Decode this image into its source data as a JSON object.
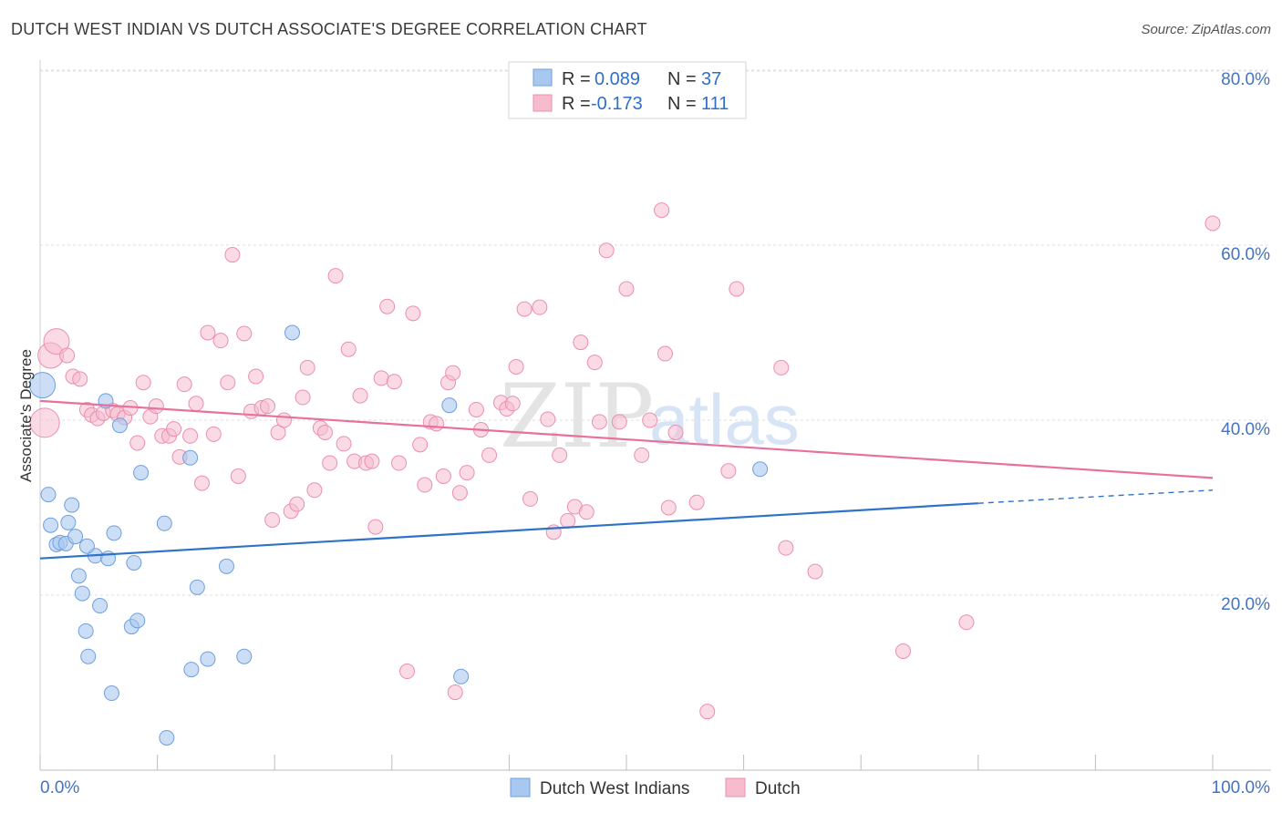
{
  "header": {
    "title": "DUTCH WEST INDIAN VS DUTCH ASSOCIATE'S DEGREE CORRELATION CHART",
    "source": "Source: ZipAtlas.com"
  },
  "watermark": {
    "zip": "ZIP",
    "atlas": "atlas"
  },
  "legend": {
    "r_label": "R =",
    "n_label": "N =",
    "series": [
      {
        "r": "0.089",
        "n": "37"
      },
      {
        "r": "-0.173",
        "n": "111"
      }
    ]
  },
  "bottom_legend": [
    "Dutch West Indians",
    "Dutch"
  ],
  "colors": {
    "blue_fill": "#a9c8f0",
    "blue_stroke": "#6f9fdc",
    "blue_line": "#2f73c9",
    "pink_fill": "#f6bccd",
    "pink_stroke": "#ec8fac",
    "pink_line": "#e8709a",
    "tick_color": "#4472c4"
  },
  "chart_data": {
    "type": "scatter",
    "title": "DUTCH WEST INDIAN VS DUTCH ASSOCIATE'S DEGREE CORRELATION CHART",
    "xlabel": "",
    "ylabel": "Associate's Degree",
    "xlim": [
      0,
      100
    ],
    "ylim": [
      0,
      82
    ],
    "x_ticks": [
      "0.0%",
      "100.0%"
    ],
    "y_ticks": [
      "20.0%",
      "40.0%",
      "60.0%",
      "80.0%"
    ],
    "y_tick_values": [
      20,
      40,
      60,
      80
    ],
    "grid": true,
    "legend_position": "top-center",
    "series": [
      {
        "name": "Dutch West Indians",
        "r": 0.089,
        "n": 37,
        "trend": {
          "x0": 0,
          "y0": 24.2,
          "x1": 80,
          "y1": 30.5,
          "dashed_to": 100,
          "dashed_y": 32.0
        },
        "points": [
          [
            0.2,
            44.0,
            14
          ],
          [
            0.7,
            31.5,
            8
          ],
          [
            0.9,
            28.0,
            8
          ],
          [
            1.4,
            25.8,
            8
          ],
          [
            1.7,
            26.0,
            8
          ],
          [
            2.2,
            25.9,
            8
          ],
          [
            2.4,
            28.3,
            8
          ],
          [
            2.7,
            30.3,
            8
          ],
          [
            3.0,
            26.7,
            8
          ],
          [
            3.3,
            22.2,
            8
          ],
          [
            3.6,
            20.2,
            8
          ],
          [
            3.9,
            15.9,
            8
          ],
          [
            4.1,
            13.0,
            8
          ],
          [
            4.7,
            24.5,
            8
          ],
          [
            5.1,
            18.8,
            8
          ],
          [
            5.6,
            42.2,
            8
          ],
          [
            5.8,
            24.2,
            8
          ],
          [
            6.1,
            8.8,
            8
          ],
          [
            6.3,
            27.1,
            8
          ],
          [
            6.8,
            39.4,
            8
          ],
          [
            7.8,
            16.4,
            8
          ],
          [
            8.0,
            23.7,
            8
          ],
          [
            8.3,
            17.1,
            8
          ],
          [
            8.6,
            34.0,
            8
          ],
          [
            10.6,
            28.2,
            8
          ],
          [
            10.8,
            3.7,
            8
          ],
          [
            12.8,
            35.7,
            8
          ],
          [
            12.9,
            11.5,
            8
          ],
          [
            13.4,
            20.9,
            8
          ],
          [
            14.3,
            12.7,
            8
          ],
          [
            15.9,
            23.3,
            8
          ],
          [
            17.4,
            13.0,
            8
          ],
          [
            21.5,
            50.0,
            8
          ],
          [
            34.9,
            41.7,
            8
          ],
          [
            35.9,
            10.7,
            8
          ],
          [
            61.4,
            34.4,
            8
          ],
          [
            4.0,
            25.6,
            8
          ]
        ]
      },
      {
        "name": "Dutch",
        "r": -0.173,
        "n": 111,
        "trend": {
          "x0": 0,
          "y0": 42.2,
          "x1": 100,
          "y1": 33.4
        },
        "points": [
          [
            0.4,
            39.7,
            16
          ],
          [
            0.9,
            47.4,
            14
          ],
          [
            1.4,
            49.0,
            14
          ],
          [
            2.3,
            47.4,
            8
          ],
          [
            2.8,
            45.0,
            8
          ],
          [
            3.4,
            44.7,
            8
          ],
          [
            4.0,
            41.2,
            8
          ],
          [
            4.4,
            40.6,
            8
          ],
          [
            4.9,
            40.2,
            8
          ],
          [
            5.4,
            40.8,
            8
          ],
          [
            6.2,
            41.1,
            8
          ],
          [
            6.6,
            40.7,
            8
          ],
          [
            7.2,
            40.3,
            8
          ],
          [
            7.7,
            41.4,
            8
          ],
          [
            8.3,
            37.4,
            8
          ],
          [
            8.8,
            44.3,
            8
          ],
          [
            9.4,
            40.4,
            8
          ],
          [
            9.9,
            41.6,
            8
          ],
          [
            10.4,
            38.2,
            8
          ],
          [
            11.0,
            38.2,
            8
          ],
          [
            11.4,
            39.0,
            8
          ],
          [
            11.9,
            35.8,
            8
          ],
          [
            12.3,
            44.1,
            8
          ],
          [
            12.8,
            38.2,
            8
          ],
          [
            13.3,
            41.9,
            8
          ],
          [
            13.8,
            32.8,
            8
          ],
          [
            14.3,
            50.0,
            8
          ],
          [
            14.8,
            38.4,
            8
          ],
          [
            15.4,
            49.1,
            8
          ],
          [
            16.0,
            44.3,
            8
          ],
          [
            16.4,
            58.9,
            8
          ],
          [
            16.9,
            33.6,
            8
          ],
          [
            17.4,
            49.9,
            8
          ],
          [
            18.0,
            41.0,
            8
          ],
          [
            18.4,
            45.0,
            8
          ],
          [
            18.9,
            41.4,
            8
          ],
          [
            19.4,
            41.6,
            8
          ],
          [
            19.8,
            28.6,
            8
          ],
          [
            20.3,
            38.6,
            8
          ],
          [
            20.8,
            40.0,
            8
          ],
          [
            21.4,
            29.6,
            8
          ],
          [
            21.9,
            30.4,
            8
          ],
          [
            22.4,
            42.6,
            8
          ],
          [
            22.8,
            46.0,
            8
          ],
          [
            23.4,
            32.0,
            8
          ],
          [
            23.9,
            39.1,
            8
          ],
          [
            24.3,
            38.6,
            8
          ],
          [
            24.7,
            35.1,
            8
          ],
          [
            25.2,
            56.5,
            8
          ],
          [
            25.9,
            37.3,
            8
          ],
          [
            26.3,
            48.1,
            8
          ],
          [
            26.8,
            35.3,
            8
          ],
          [
            27.3,
            42.8,
            8
          ],
          [
            27.8,
            35.1,
            8
          ],
          [
            28.3,
            35.3,
            8
          ],
          [
            28.6,
            27.8,
            8
          ],
          [
            29.1,
            44.8,
            8
          ],
          [
            29.6,
            53.0,
            8
          ],
          [
            30.2,
            44.4,
            8
          ],
          [
            30.6,
            35.1,
            8
          ],
          [
            31.3,
            11.3,
            8
          ],
          [
            31.8,
            52.2,
            8
          ],
          [
            32.4,
            37.2,
            8
          ],
          [
            32.8,
            32.6,
            8
          ],
          [
            33.3,
            39.8,
            8
          ],
          [
            33.8,
            39.6,
            8
          ],
          [
            34.4,
            33.6,
            8
          ],
          [
            34.8,
            44.3,
            8
          ],
          [
            35.2,
            45.4,
            8
          ],
          [
            35.4,
            8.9,
            8
          ],
          [
            35.8,
            31.7,
            8
          ],
          [
            36.4,
            34.0,
            8
          ],
          [
            37.2,
            41.2,
            8
          ],
          [
            37.6,
            38.9,
            8
          ],
          [
            38.3,
            36.0,
            8
          ],
          [
            39.3,
            42.0,
            8
          ],
          [
            39.8,
            41.3,
            8
          ],
          [
            40.3,
            41.9,
            8
          ],
          [
            40.6,
            46.1,
            8
          ],
          [
            41.3,
            52.7,
            8
          ],
          [
            41.8,
            31.0,
            8
          ],
          [
            42.6,
            52.9,
            8
          ],
          [
            43.3,
            40.1,
            8
          ],
          [
            43.8,
            27.2,
            8
          ],
          [
            44.3,
            36.0,
            8
          ],
          [
            45.0,
            28.5,
            8
          ],
          [
            45.6,
            30.1,
            8
          ],
          [
            46.1,
            48.9,
            8
          ],
          [
            46.6,
            29.5,
            8
          ],
          [
            47.3,
            46.6,
            8
          ],
          [
            47.7,
            39.8,
            8
          ],
          [
            48.3,
            59.4,
            8
          ],
          [
            49.4,
            39.8,
            8
          ],
          [
            50.0,
            55.0,
            8
          ],
          [
            51.3,
            36.0,
            8
          ],
          [
            52.0,
            40.0,
            8
          ],
          [
            53.0,
            64.0,
            8
          ],
          [
            53.3,
            47.6,
            8
          ],
          [
            53.6,
            30.0,
            8
          ],
          [
            54.2,
            38.6,
            8
          ],
          [
            56.0,
            30.6,
            8
          ],
          [
            56.9,
            6.7,
            8
          ],
          [
            58.7,
            34.2,
            8
          ],
          [
            59.4,
            55.0,
            8
          ],
          [
            63.2,
            46.0,
            8
          ],
          [
            63.6,
            25.4,
            8
          ],
          [
            66.1,
            22.7,
            8
          ],
          [
            73.6,
            13.6,
            8
          ],
          [
            79.0,
            16.9,
            8
          ],
          [
            100.0,
            62.5,
            8
          ]
        ]
      }
    ]
  }
}
